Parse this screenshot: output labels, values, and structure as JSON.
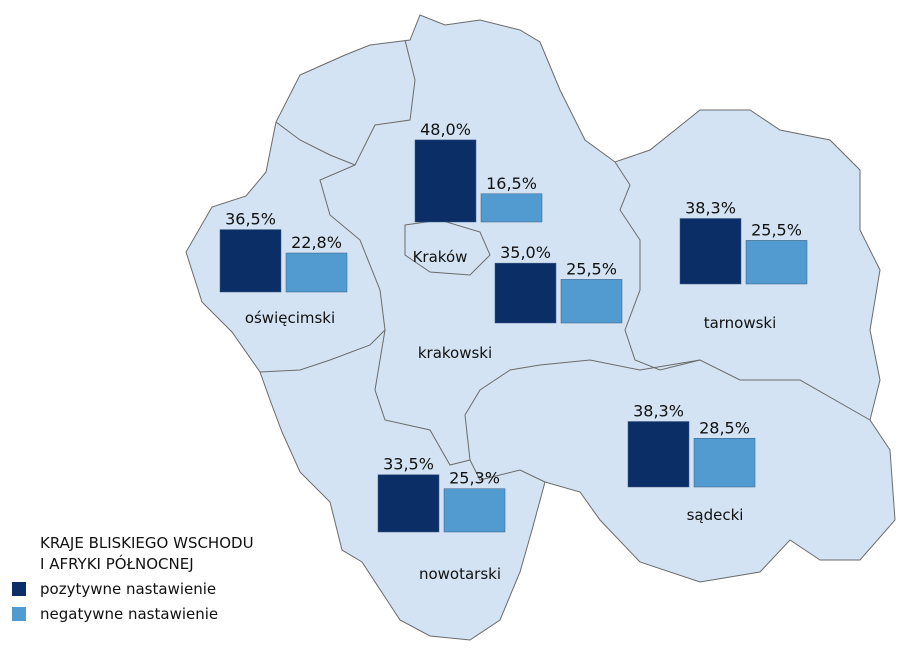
{
  "legend": {
    "title": [
      "KRAJE BLISKIEGO WSCHODU",
      "I AFRYKI PÓŁNOCNEJ"
    ],
    "items": [
      {
        "label": "pozytywne nastawienie",
        "color": "#0c2e67"
      },
      {
        "label": "negatywne nastawienie",
        "color": "#529bd0"
      }
    ]
  },
  "regions": [
    {
      "name": "Kraków",
      "positive": 48.0,
      "positive_label": "48,0%",
      "negative": 16.5,
      "negative_label": "16,5%"
    },
    {
      "name": "oświęcimski",
      "positive": 36.5,
      "positive_label": "36,5%",
      "negative": 22.8,
      "negative_label": "22,8%"
    },
    {
      "name": "krakowski",
      "positive": 35.0,
      "positive_label": "35,0%",
      "negative": 25.5,
      "negative_label": "25,5%"
    },
    {
      "name": "tarnowski",
      "positive": 38.3,
      "positive_label": "38,3%",
      "negative": 25.5,
      "negative_label": "25,5%"
    },
    {
      "name": "sądecki",
      "positive": 38.3,
      "positive_label": "38,3%",
      "negative": 28.5,
      "negative_label": "28,5%"
    },
    {
      "name": "nowotarski",
      "positive": 33.5,
      "positive_label": "33,5%",
      "negative": 25.3,
      "negative_label": "25,3%"
    }
  ]
}
